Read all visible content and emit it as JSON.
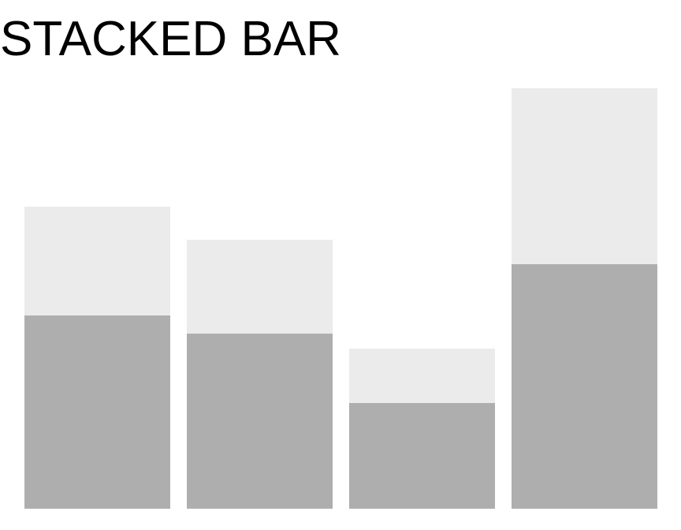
{
  "chart_data": {
    "type": "bar",
    "stacked": true,
    "title": "STACKED BAR",
    "categories": [
      "",
      "",
      "",
      ""
    ],
    "series": [
      {
        "values": [
          245,
          222,
          134,
          310
        ],
        "color": "#aeaeae"
      },
      {
        "values": [
          138,
          119,
          69,
          223
        ],
        "color": "#ebebeb"
      }
    ],
    "ylim": [
      0,
      533
    ],
    "grid": false,
    "legend": "none"
  }
}
